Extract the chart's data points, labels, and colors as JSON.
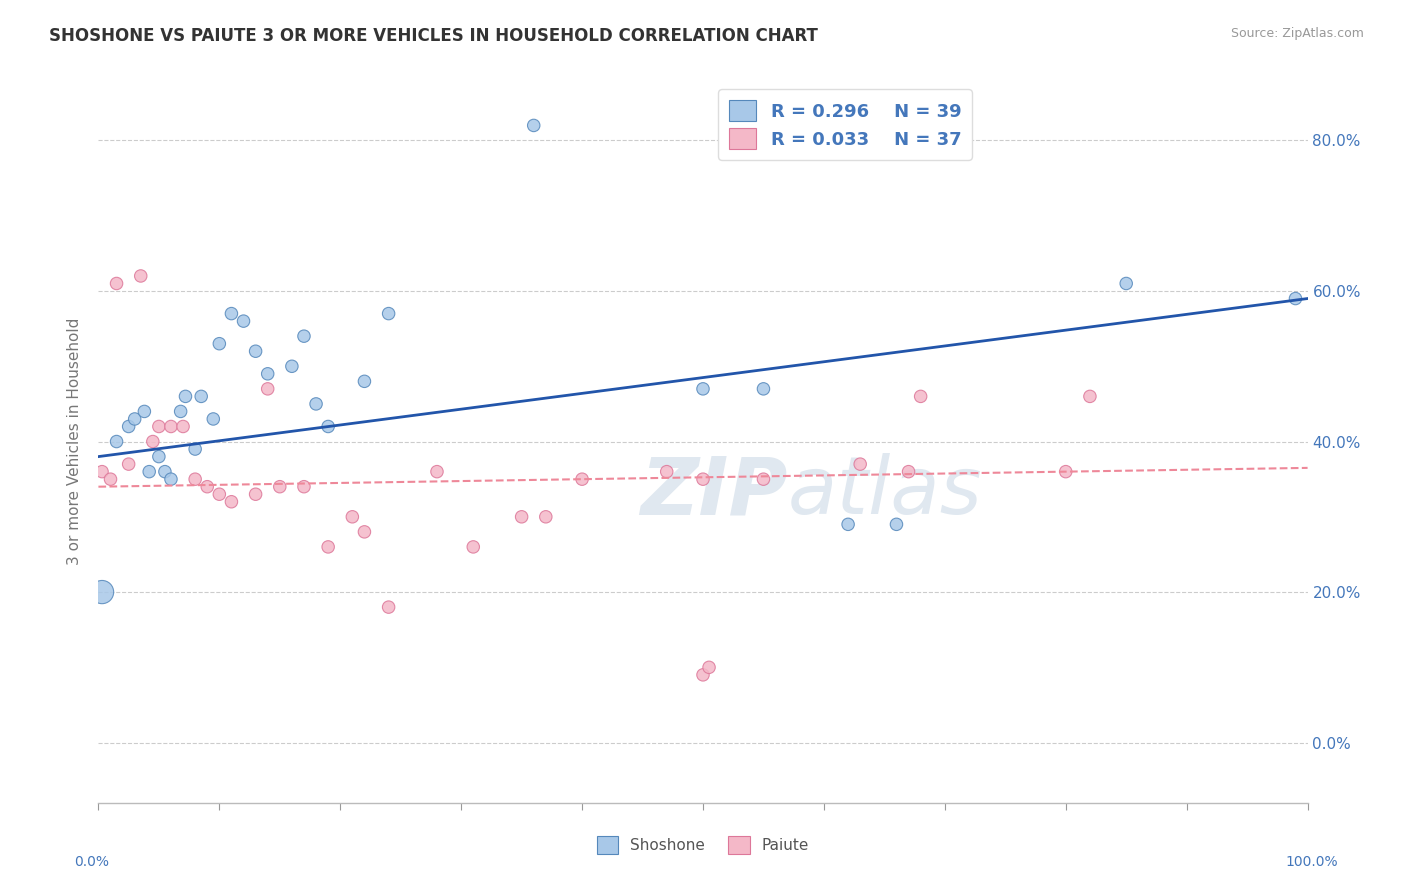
{
  "title": "SHOSHONE VS PAIUTE 3 OR MORE VEHICLES IN HOUSEHOLD CORRELATION CHART",
  "source": "Source: ZipAtlas.com",
  "ylabel": "3 or more Vehicles in Household",
  "xlim": [
    0,
    100
  ],
  "ylim": [
    -8,
    88
  ],
  "ytick_positions": [
    0,
    20,
    40,
    60,
    80
  ],
  "ytick_labels": [
    "0.0%",
    "20.0%",
    "40.0%",
    "60.0%",
    "80.0%"
  ],
  "xtick_positions": [
    0,
    10,
    20,
    30,
    40,
    50,
    60,
    70,
    80,
    90,
    100
  ],
  "shoshone_color": "#a8c8e8",
  "paiute_color": "#f4b8c8",
  "shoshone_edge_color": "#5588bb",
  "paiute_edge_color": "#dd7799",
  "shoshone_line_color": "#2255aa",
  "paiute_line_color": "#ee8899",
  "text_color": "#4477bb",
  "watermark_color": "#e0e8f0",
  "legend_r1": "R = 0.296",
  "legend_n1": "N = 39",
  "legend_r2": "R = 0.033",
  "legend_n2": "N = 37",
  "shoshone_reg_y0": 38.0,
  "shoshone_reg_y1": 59.0,
  "paiute_reg_y0": 34.0,
  "paiute_reg_y1": 36.5,
  "shoshone_x": [
    0.3,
    1.5,
    2.5,
    3.0,
    3.8,
    4.2,
    5.0,
    5.5,
    6.0,
    6.8,
    7.2,
    8.0,
    8.5,
    9.5,
    10.0,
    11.0,
    12.0,
    13.0,
    14.0,
    16.0,
    17.0,
    18.0,
    19.0,
    22.0,
    24.0,
    36.0,
    50.0,
    55.0,
    62.0,
    66.0,
    85.0,
    99.0
  ],
  "shoshone_y": [
    20.0,
    40.0,
    42.0,
    43.0,
    44.0,
    36.0,
    38.0,
    36.0,
    35.0,
    44.0,
    46.0,
    39.0,
    46.0,
    43.0,
    53.0,
    57.0,
    56.0,
    52.0,
    49.0,
    50.0,
    54.0,
    45.0,
    42.0,
    48.0,
    57.0,
    82.0,
    47.0,
    47.0,
    29.0,
    29.0,
    61.0,
    59.0
  ],
  "shoshone_sizes": [
    280,
    80,
    80,
    80,
    80,
    80,
    80,
    80,
    80,
    80,
    80,
    80,
    80,
    80,
    80,
    80,
    80,
    80,
    80,
    80,
    80,
    80,
    80,
    80,
    80,
    80,
    80,
    80,
    80,
    80,
    80,
    80
  ],
  "paiute_x": [
    0.3,
    1.0,
    1.5,
    2.5,
    3.5,
    4.5,
    5.0,
    6.0,
    7.0,
    8.0,
    9.0,
    10.0,
    11.0,
    13.0,
    14.0,
    15.0,
    17.0,
    19.0,
    21.0,
    22.0,
    24.0,
    28.0,
    31.0,
    35.0,
    37.0,
    40.0,
    47.0,
    50.0,
    55.0,
    63.0,
    67.0,
    68.0,
    80.0,
    82.0,
    50.0,
    50.5
  ],
  "paiute_y": [
    36.0,
    35.0,
    61.0,
    37.0,
    62.0,
    40.0,
    42.0,
    42.0,
    42.0,
    35.0,
    34.0,
    33.0,
    32.0,
    33.0,
    47.0,
    34.0,
    34.0,
    26.0,
    30.0,
    28.0,
    18.0,
    36.0,
    26.0,
    30.0,
    30.0,
    35.0,
    36.0,
    35.0,
    35.0,
    37.0,
    36.0,
    46.0,
    36.0,
    46.0,
    9.0,
    10.0
  ],
  "paiute_sizes": [
    80,
    80,
    80,
    80,
    80,
    80,
    80,
    80,
    80,
    80,
    80,
    80,
    80,
    80,
    80,
    80,
    80,
    80,
    80,
    80,
    80,
    80,
    80,
    80,
    80,
    80,
    80,
    80,
    80,
    80,
    80,
    80,
    80,
    80,
    80,
    80
  ]
}
